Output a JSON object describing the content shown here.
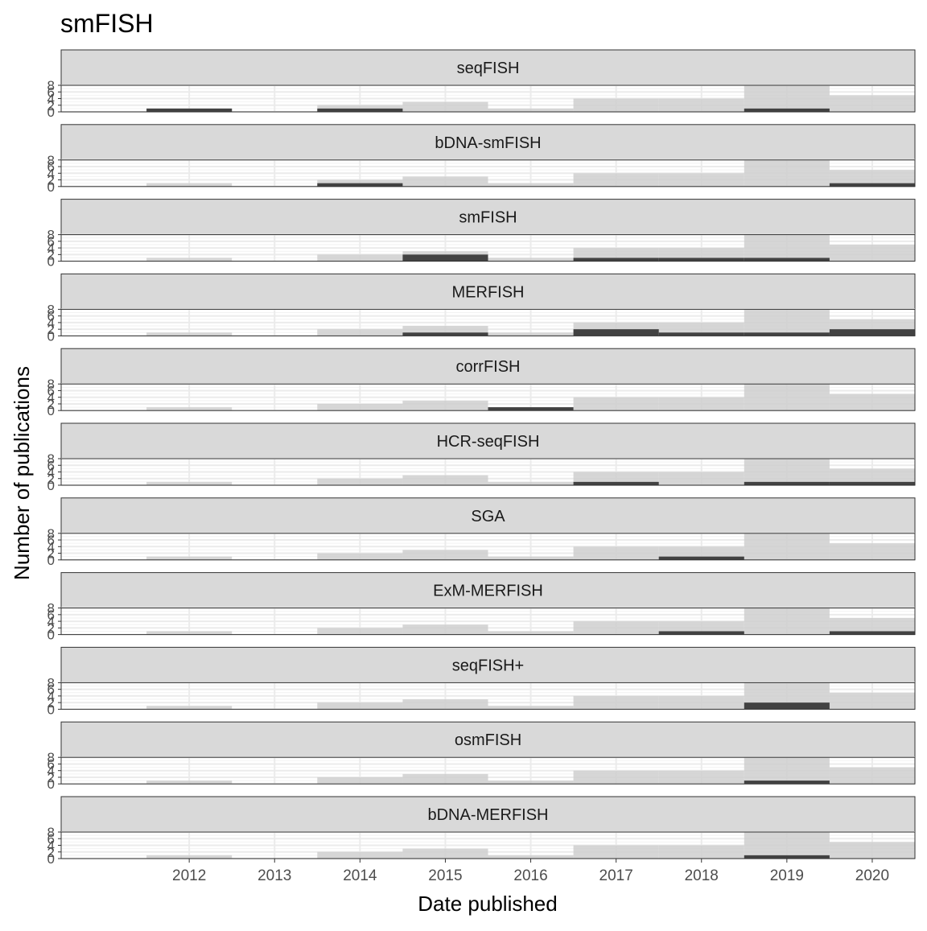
{
  "chart_data": {
    "type": "bar",
    "title": "smFISH",
    "xlabel": "Date published",
    "ylabel": "Number of publications",
    "x_ticks": [
      "2012",
      "2013",
      "2014",
      "2015",
      "2016",
      "2017",
      "2018",
      "2019",
      "2020"
    ],
    "y_ticks": [
      "0",
      "2",
      "4",
      "6",
      "8"
    ],
    "ylim": [
      0,
      8
    ],
    "xlim": [
      "2011-01",
      "2020-12"
    ],
    "grid": true,
    "facet_layout": "one column, one panel per technique, shared axes",
    "background_series": {
      "description": "all smFISH-type publications per year (grey)",
      "color": "#cfcfcf",
      "x": [
        2012,
        2013,
        2014,
        2015,
        2016,
        2017,
        2018,
        2019,
        2020
      ],
      "values": [
        1,
        0,
        2,
        3,
        1,
        4,
        4,
        8,
        5
      ]
    },
    "highlight_color": "#424242",
    "panels": [
      {
        "name": "seqFISH",
        "values": [
          1,
          0,
          1,
          0,
          0,
          0,
          0,
          1,
          0
        ]
      },
      {
        "name": "bDNA-smFISH",
        "values": [
          0,
          0,
          1,
          0,
          0,
          0,
          0,
          0,
          1
        ]
      },
      {
        "name": "smFISH",
        "values": [
          0,
          0,
          0,
          2,
          0,
          1,
          1,
          1,
          0
        ]
      },
      {
        "name": "MERFISH",
        "values": [
          0,
          0,
          0,
          1,
          0,
          2,
          1,
          1,
          2
        ]
      },
      {
        "name": "corrFISH",
        "values": [
          0,
          0,
          0,
          0,
          1,
          0,
          0,
          0,
          0
        ]
      },
      {
        "name": "HCR-seqFISH",
        "values": [
          0,
          0,
          0,
          0,
          0,
          1,
          0,
          1,
          1
        ]
      },
      {
        "name": "SGA",
        "values": [
          0,
          0,
          0,
          0,
          0,
          0,
          1,
          0,
          0
        ]
      },
      {
        "name": "ExM-MERFISH",
        "values": [
          0,
          0,
          0,
          0,
          0,
          0,
          1,
          0,
          1
        ]
      },
      {
        "name": "seqFISH+",
        "values": [
          0,
          0,
          0,
          0,
          0,
          0,
          0,
          2,
          0
        ]
      },
      {
        "name": "osmFISH",
        "values": [
          0,
          0,
          0,
          0,
          0,
          0,
          0,
          1,
          0
        ]
      },
      {
        "name": "bDNA-MERFISH",
        "values": [
          0,
          0,
          0,
          0,
          0,
          0,
          0,
          1,
          0
        ]
      }
    ]
  }
}
